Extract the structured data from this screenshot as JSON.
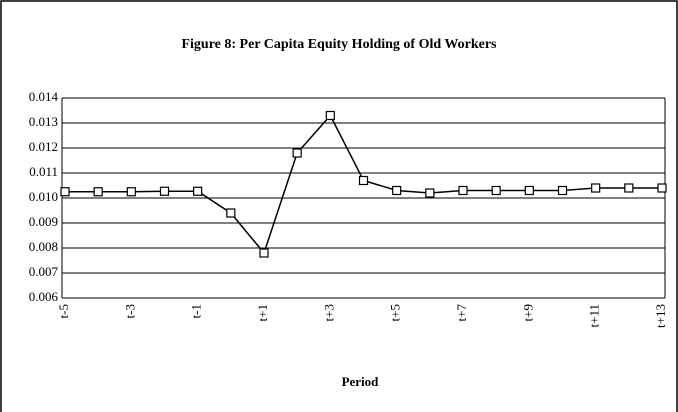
{
  "chart_data": {
    "type": "line",
    "title": "Figure 8: Per Capita Equity Holding of Old Workers",
    "x_label": "Period",
    "categories": [
      "t-5",
      null,
      "t-3",
      null,
      "t-1",
      null,
      "t+1",
      null,
      "t+3",
      null,
      "t+5",
      null,
      "t+7",
      null,
      "t+9",
      null,
      "t+11",
      null,
      "t+13"
    ],
    "series": [
      {
        "name": null,
        "color": "#000000",
        "values": [
          0.01025,
          0.01025,
          0.01025,
          0.01027,
          0.01027,
          0.0094,
          0.0078,
          0.0118,
          0.0133,
          0.0107,
          0.0103,
          0.0102,
          0.0103,
          0.0103,
          0.0103,
          0.0103,
          0.0104,
          0.0104,
          0.0104
        ]
      }
    ],
    "ylim": [
      0.006,
      0.014
    ],
    "yticks": [
      0.006,
      0.007,
      0.008,
      0.009,
      {
        "value": 0.01,
        "label": "0.010"
      },
      0.011,
      0.012,
      0.013,
      0.014
    ],
    "grid": true
  }
}
